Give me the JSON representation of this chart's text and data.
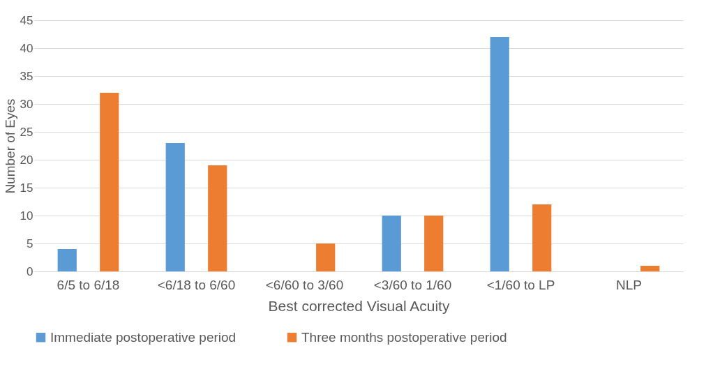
{
  "chart_data": {
    "type": "bar",
    "xlabel": "Best corrected Visual Acuity",
    "ylabel": "Number of Eyes",
    "categories": [
      "6/5 to 6/18",
      "<6/18 to 6/60",
      "<6/60 to 3/60",
      "<3/60 to 1/60",
      "<1/60 to LP",
      "NLP"
    ],
    "series": [
      {
        "name": "Immediate postoperative period",
        "color": "#5b9bd5",
        "values": [
          4,
          23,
          0,
          10,
          42,
          0
        ]
      },
      {
        "name": "Three months postoperative period",
        "color": "#ed7d31",
        "values": [
          32,
          19,
          5,
          10,
          12,
          1
        ]
      }
    ],
    "ylim": [
      0,
      45
    ],
    "yticks": [
      0,
      5,
      10,
      15,
      20,
      25,
      30,
      35,
      40,
      45
    ],
    "grid": "y",
    "legend": "bottom"
  }
}
